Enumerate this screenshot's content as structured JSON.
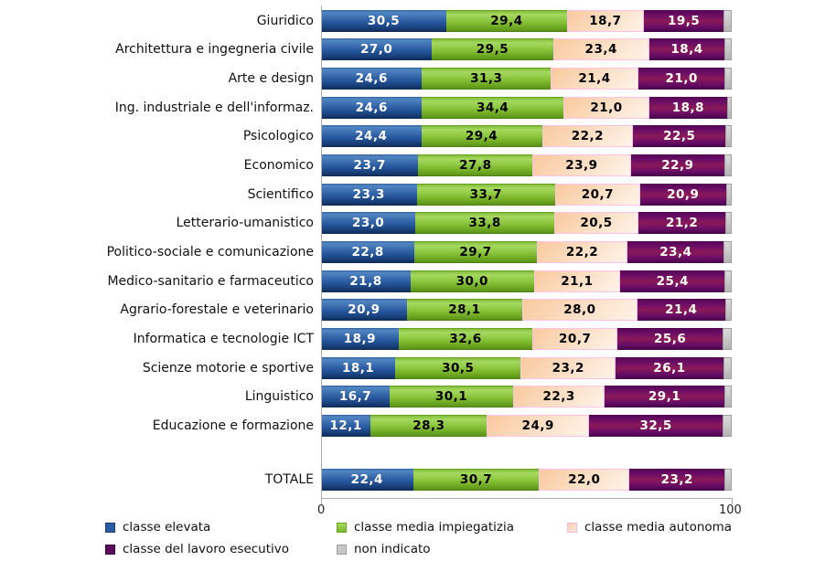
{
  "chart_data": {
    "type": "bar",
    "variant": "horizontal-stacked",
    "title": "",
    "xlabel": "",
    "ylabel": "",
    "xlim": [
      0,
      100
    ],
    "x_ticks": [
      "0",
      "100"
    ],
    "grid": false,
    "legend_position": "bottom",
    "value_label_format": "comma-decimal-1",
    "categories": [
      "Giuridico",
      "Architettura e ingegneria civile",
      "Arte e design",
      "Ing. industriale e dell'informaz.",
      "Psicologico",
      "Economico",
      "Scientifico",
      "Letterario-umanistico",
      "Politico-sociale e comunicazione",
      "Medico-sanitario e farmaceutico",
      "Agrario-forestale e veterinario",
      "Informatica e tecnologie ICT",
      "Scienze motorie e sportive",
      "Linguistico",
      "Educazione e formazione",
      "TOTALE"
    ],
    "series": [
      {
        "name": "classe elevata",
        "slug": "classe-elevata",
        "color": "#2A5CA5",
        "values": [
          30.5,
          27.0,
          24.6,
          24.6,
          24.4,
          23.7,
          23.3,
          23.0,
          22.8,
          21.8,
          20.9,
          18.9,
          18.1,
          16.7,
          12.1,
          22.4
        ]
      },
      {
        "name": "classe media impiegatizia",
        "slug": "classe-media-impiegatizia",
        "color": "#8CC63F",
        "values": [
          29.4,
          29.5,
          31.3,
          34.4,
          29.4,
          27.8,
          33.7,
          33.8,
          29.7,
          30.0,
          28.1,
          32.6,
          30.5,
          30.1,
          28.3,
          30.7
        ]
      },
      {
        "name": "classe media autonoma",
        "slug": "classe-media-autonoma",
        "color": "#FBD5AE",
        "values": [
          18.7,
          23.4,
          21.4,
          21.0,
          22.2,
          23.9,
          20.7,
          20.5,
          22.2,
          21.1,
          28.0,
          20.7,
          23.2,
          22.3,
          24.9,
          22.0
        ]
      },
      {
        "name": "classe del lavoro esecutivo",
        "slug": "classe-del-lavoro-esecutivo",
        "color": "#66066A",
        "values": [
          19.5,
          18.4,
          21.0,
          18.8,
          22.5,
          22.9,
          20.9,
          21.2,
          23.4,
          25.4,
          21.4,
          25.6,
          26.1,
          29.1,
          32.5,
          23.2
        ]
      },
      {
        "name": "non indicato",
        "slug": "non-indicato",
        "color": "#C6C6C6",
        "show_labels": false,
        "values": [
          1.9,
          1.7,
          1.7,
          1.2,
          1.5,
          1.7,
          1.4,
          1.5,
          1.9,
          1.7,
          1.6,
          2.2,
          2.1,
          1.8,
          2.2,
          1.7
        ]
      }
    ]
  }
}
